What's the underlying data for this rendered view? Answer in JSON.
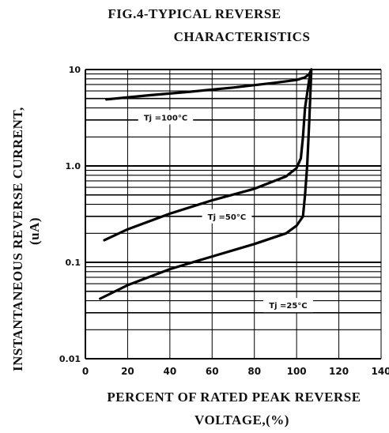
{
  "chart_data": {
    "type": "line",
    "title": "FIG.4-TYPICAL REVERSE",
    "subtitle": "CHARACTERISTICS",
    "xlabel_line1": "PERCENT OF RATED PEAK REVERSE",
    "xlabel_line2": "VOLTAGE,(%)",
    "ylabel_line1": "INSTANTANEOUS REVERSE CURRENT,",
    "ylabel_line2": "(uA)",
    "y_scale": "log",
    "xlim": [
      0,
      140
    ],
    "ylim": [
      0.01,
      10
    ],
    "x_ticks": [
      "0",
      "20",
      "40",
      "60",
      "80",
      "100",
      "120",
      "140"
    ],
    "y_ticks": [
      "10",
      "1.0",
      "0.1",
      "0.01"
    ],
    "y_tick_values": [
      10,
      1.0,
      0.1,
      0.01
    ],
    "grid": true,
    "color": "#000000",
    "series": [
      {
        "name": "Tj =100°C",
        "points": [
          [
            10,
            4.9
          ],
          [
            30,
            5.4
          ],
          [
            50,
            5.9
          ],
          [
            70,
            6.5
          ],
          [
            90,
            7.3
          ],
          [
            100,
            7.8
          ],
          [
            104,
            8.3
          ],
          [
            106,
            9.0
          ],
          [
            107,
            10
          ]
        ]
      },
      {
        "name": "Tj =50°C",
        "points": [
          [
            9,
            0.17
          ],
          [
            20,
            0.22
          ],
          [
            40,
            0.32
          ],
          [
            60,
            0.44
          ],
          [
            80,
            0.58
          ],
          [
            95,
            0.78
          ],
          [
            100,
            0.95
          ],
          [
            102,
            1.2
          ],
          [
            103,
            2.0
          ],
          [
            104,
            4.0
          ],
          [
            106,
            8.0
          ],
          [
            107,
            10
          ]
        ]
      },
      {
        "name": "Tj =25°C",
        "points": [
          [
            7,
            0.042
          ],
          [
            20,
            0.058
          ],
          [
            40,
            0.085
          ],
          [
            60,
            0.115
          ],
          [
            80,
            0.155
          ],
          [
            95,
            0.2
          ],
          [
            100,
            0.24
          ],
          [
            103,
            0.3
          ],
          [
            104,
            0.5
          ],
          [
            105,
            1.0
          ],
          [
            106,
            3.0
          ],
          [
            107,
            10
          ]
        ]
      }
    ]
  },
  "curve_label_positions": [
    {
      "name": "Tj =100°C",
      "x": 38,
      "y": 3.2
    },
    {
      "name": "Tj =50°C",
      "x": 67,
      "y": 0.3
    },
    {
      "name": "Tj =25°C",
      "x": 96,
      "y": 0.036
    }
  ]
}
